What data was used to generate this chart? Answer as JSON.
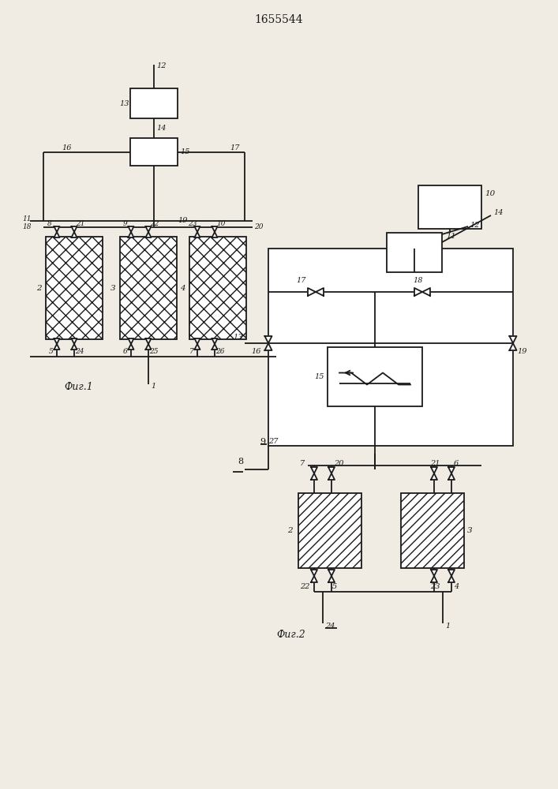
{
  "title": "1655544",
  "fig1_label": "Фиг.1",
  "fig2_label": "Фиг.2",
  "bg_color": "#f0ece4",
  "line_color": "#1a1a1a",
  "text_color": "#1a1a1a"
}
